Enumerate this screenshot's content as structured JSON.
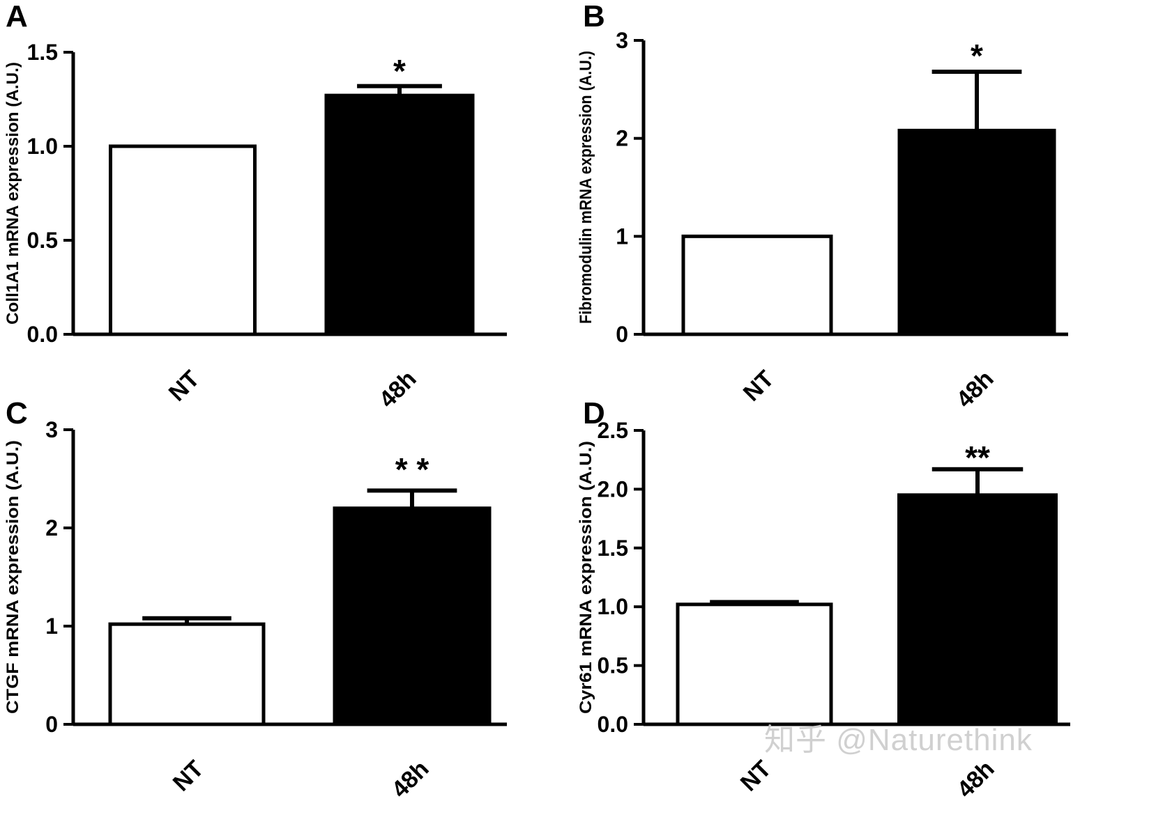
{
  "figure": {
    "watermark": "知乎 @Naturethink"
  },
  "chart_data": [
    {
      "type": "bar",
      "panel": "A",
      "title": "",
      "ylabel": "Coll1A1 mRNA expression (A.U.)",
      "categories": [
        "NT",
        "48h"
      ],
      "values": [
        1.0,
        1.27
      ],
      "errors": [
        0,
        0.05
      ],
      "bar_fills": [
        "#ffffff",
        "#000000"
      ],
      "bar_border": "#000000",
      "significance": "*",
      "significance_on": "48h",
      "ylim": [
        0,
        1.5
      ],
      "yticks": [
        0,
        0.5,
        1.0,
        1.5
      ],
      "ytick_labels": [
        "0.0",
        "0.5",
        "1.0",
        "1.5"
      ],
      "grid": false,
      "legend": false
    },
    {
      "type": "bar",
      "panel": "B",
      "title": "",
      "ylabel": "Fibromodulin mRNA expression (A.U.)",
      "categories": [
        "NT",
        "48h"
      ],
      "values": [
        1.0,
        2.08
      ],
      "errors": [
        0,
        0.6
      ],
      "bar_fills": [
        "#ffffff",
        "#000000"
      ],
      "bar_border": "#000000",
      "significance": "*",
      "significance_on": "48h",
      "ylim": [
        0,
        3
      ],
      "yticks": [
        0,
        1,
        2,
        3
      ],
      "ytick_labels": [
        "0",
        "1",
        "2",
        "3"
      ],
      "grid": false,
      "legend": false
    },
    {
      "type": "bar",
      "panel": "C",
      "title": "",
      "ylabel": "CTGF mRNA expression (A.U.)",
      "categories": [
        "NT",
        "48h"
      ],
      "values": [
        1.02,
        2.2
      ],
      "errors": [
        0.06,
        0.18
      ],
      "bar_fills": [
        "#ffffff",
        "#000000"
      ],
      "bar_border": "#000000",
      "significance": "* *",
      "significance_on": "48h",
      "ylim": [
        0,
        3
      ],
      "yticks": [
        0,
        1,
        2,
        3
      ],
      "ytick_labels": [
        "0",
        "1",
        "2",
        "3"
      ],
      "grid": false,
      "legend": false
    },
    {
      "type": "bar",
      "panel": "D",
      "title": "",
      "ylabel": "Cyr61 mRNA expression (A.U.)",
      "categories": [
        "NT",
        "48h"
      ],
      "values": [
        1.02,
        1.95
      ],
      "errors": [
        0.02,
        0.22
      ],
      "bar_fills": [
        "#ffffff",
        "#000000"
      ],
      "bar_border": "#000000",
      "significance": "**",
      "significance_on": "48h",
      "ylim": [
        0,
        2.5
      ],
      "yticks": [
        0,
        0.5,
        1.0,
        1.5,
        2.0,
        2.5
      ],
      "ytick_labels": [
        "0.0",
        "0.5",
        "1.0",
        "1.5",
        "2.0",
        "2.5"
      ],
      "grid": false,
      "legend": false
    }
  ]
}
